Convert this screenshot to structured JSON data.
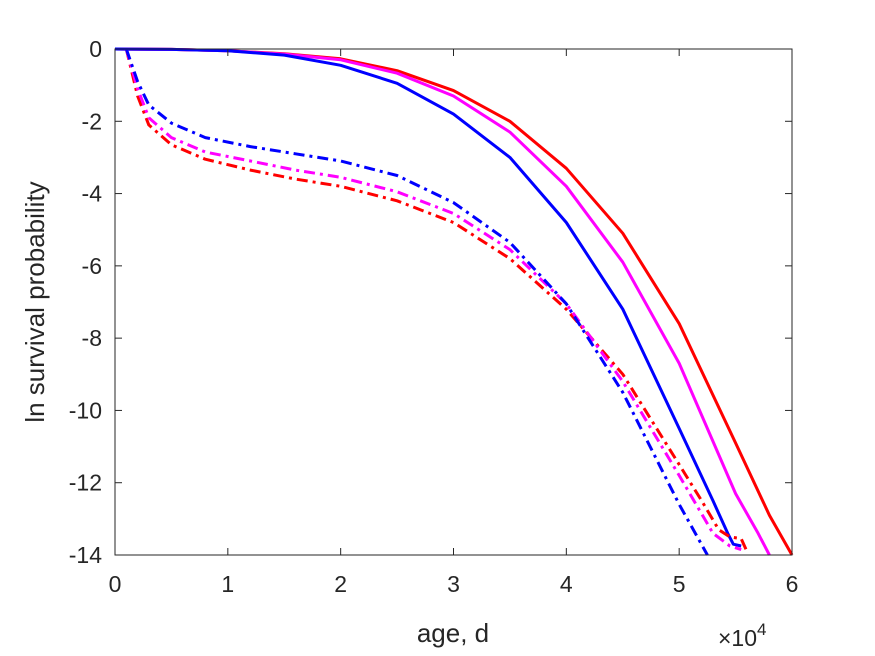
{
  "chart_data": {
    "type": "line",
    "title": "",
    "xlabel": "age, d",
    "ylabel": "ln survival probability",
    "x_exponent_label": {
      "base": "×10",
      "power": "4"
    },
    "xlim": [
      0,
      60000
    ],
    "ylim": [
      -14,
      0
    ],
    "xticks": [
      0,
      10000,
      20000,
      30000,
      40000,
      50000,
      60000
    ],
    "xtick_labels": [
      "0",
      "1",
      "2",
      "3",
      "4",
      "5",
      "6"
    ],
    "yticks": [
      0,
      -2,
      -4,
      -6,
      -8,
      -10,
      -12,
      -14
    ],
    "ytick_labels": [
      "0",
      "-2",
      "-4",
      "-6",
      "-8",
      "-10",
      "-12",
      "-14"
    ],
    "grid": false,
    "legend": "none",
    "series": [
      {
        "color": "#ff0000",
        "style": "solid",
        "x": [
          0,
          5000,
          10000,
          15000,
          20000,
          25000,
          30000,
          35000,
          40000,
          45000,
          50000,
          55000,
          58000,
          60000
        ],
        "y": [
          0,
          -0.01,
          -0.05,
          -0.13,
          -0.27,
          -0.6,
          -1.15,
          -2.0,
          -3.3,
          -5.1,
          -7.6,
          -10.9,
          -12.9,
          -14.0
        ]
      },
      {
        "color": "#ff00ff",
        "style": "solid",
        "x": [
          0,
          5000,
          10000,
          15000,
          20000,
          25000,
          30000,
          35000,
          40000,
          45000,
          50000,
          55000,
          57000,
          58000
        ],
        "y": [
          0,
          -0.01,
          -0.05,
          -0.14,
          -0.3,
          -0.67,
          -1.3,
          -2.3,
          -3.8,
          -5.9,
          -8.7,
          -12.3,
          -13.4,
          -14.0
        ]
      },
      {
        "color": "#0000ff",
        "style": "solid",
        "x": [
          0,
          5000,
          10000,
          15000,
          20000,
          25000,
          30000,
          35000,
          40000,
          45000,
          50000,
          53000,
          54300,
          54800,
          55500
        ],
        "y": [
          0,
          -0.01,
          -0.05,
          -0.17,
          -0.45,
          -0.95,
          -1.8,
          -3.0,
          -4.8,
          -7.2,
          -10.5,
          -12.5,
          -13.4,
          -13.7,
          -13.75
        ]
      },
      {
        "color": "#ff0000",
        "style": "dashdot",
        "x": [
          1000,
          2000,
          3000,
          5000,
          8000,
          12000,
          16000,
          20000,
          25000,
          30000,
          35000,
          40000,
          45000,
          50000,
          52000,
          53500,
          54500,
          55500,
          56000
        ],
        "y": [
          0,
          -1.3,
          -2.1,
          -2.65,
          -3.05,
          -3.35,
          -3.6,
          -3.8,
          -4.2,
          -4.8,
          -5.8,
          -7.2,
          -9.0,
          -11.5,
          -12.5,
          -13.3,
          -13.5,
          -13.55,
          -13.9
        ]
      },
      {
        "color": "#ff00ff",
        "style": "dashdot",
        "x": [
          1000,
          2000,
          3000,
          5000,
          8000,
          12000,
          16000,
          20000,
          25000,
          30000,
          35000,
          40000,
          45000,
          50000,
          53000,
          54500,
          55500
        ],
        "y": [
          0,
          -1.1,
          -1.9,
          -2.45,
          -2.85,
          -3.1,
          -3.35,
          -3.55,
          -3.95,
          -4.55,
          -5.55,
          -7.05,
          -9.2,
          -11.8,
          -13.4,
          -13.75,
          -13.85
        ]
      },
      {
        "color": "#0000ff",
        "style": "dashdot",
        "x": [
          1000,
          2000,
          3000,
          5000,
          8000,
          12000,
          16000,
          20000,
          25000,
          30000,
          35000,
          40000,
          45000,
          50000,
          52500
        ],
        "y": [
          0,
          -0.9,
          -1.55,
          -2.05,
          -2.45,
          -2.7,
          -2.9,
          -3.1,
          -3.5,
          -4.25,
          -5.35,
          -7.05,
          -9.5,
          -12.6,
          -14.0
        ]
      }
    ]
  }
}
